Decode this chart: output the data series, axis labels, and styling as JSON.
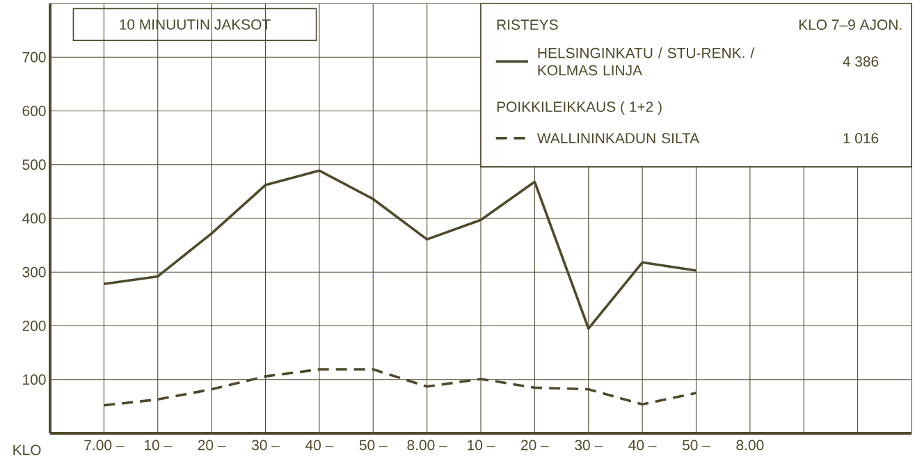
{
  "chart_data": {
    "type": "line",
    "categories": [
      "7.00 –",
      "10 –",
      "20 –",
      "30 –",
      "40 –",
      "50 –",
      "8.00 –",
      "10 –",
      "20 –",
      "30 –",
      "40 –",
      "50 –",
      "8.00",
      null,
      null,
      null
    ],
    "series": [
      {
        "name": "HELSINGINKATU / STU-RENK. / KOLMAS LINJA",
        "color": "#4f4a2c",
        "line_style": "solid",
        "values": [
          278,
          292,
          372,
          462,
          489,
          436,
          361,
          397,
          468,
          195,
          318,
          303,
          null,
          null,
          null,
          null
        ]
      },
      {
        "name": "WALLININKADUN SILTA",
        "color": "#4f4a2c",
        "line_style": "dashed",
        "values": [
          52,
          63,
          82,
          106,
          119,
          119,
          87,
          101,
          85,
          82,
          54,
          75,
          null,
          null,
          null,
          null
        ]
      }
    ],
    "xlabel": "KLO",
    "legend_title": "RISTEYS",
    "annotations": [
      "10 MINUUTIN JAKSOT",
      "KLO 7–9 AJON.",
      "4 386",
      "POIKKILEIKKAUS ( 1+2 )",
      "1 016"
    ],
    "ylim": [
      0,
      800
    ],
    "yticks": [
      100,
      200,
      300,
      400,
      500,
      600,
      700,
      {
        "value": 800,
        "label": null
      }
    ],
    "grid": true,
    "legend": "top right"
  }
}
